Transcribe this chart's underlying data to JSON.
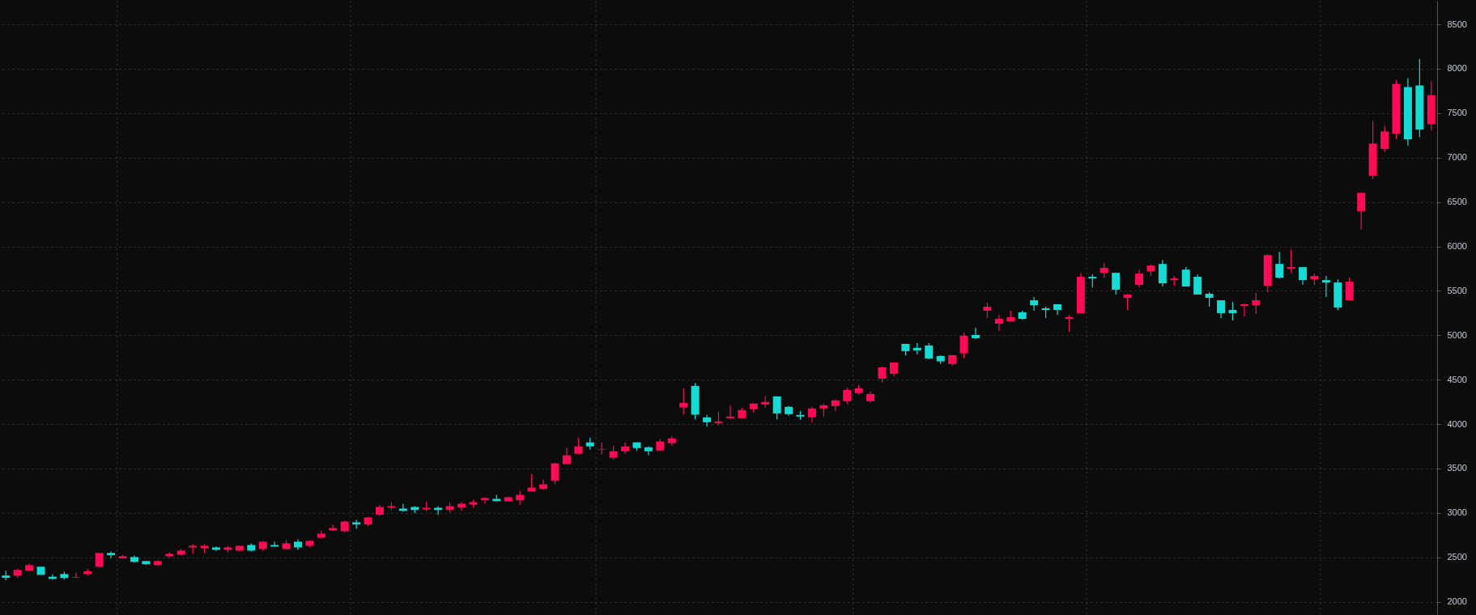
{
  "chart_data": {
    "type": "candlestick",
    "categories": [
      null,
      null,
      null,
      null,
      null,
      null,
      null,
      null,
      null,
      null,
      null,
      null,
      null,
      null,
      null,
      null,
      null,
      null,
      null,
      null,
      null,
      null,
      null,
      null,
      null,
      null,
      null,
      null,
      null,
      null,
      null,
      null,
      null,
      null,
      null,
      null,
      null,
      null,
      null,
      null,
      null,
      null,
      null,
      null,
      null,
      null,
      null,
      null,
      null,
      null,
      null,
      null,
      null,
      null,
      null,
      null,
      null,
      null,
      null,
      null,
      null,
      null,
      null,
      null,
      null,
      null,
      null,
      null,
      null,
      null,
      null,
      null,
      null,
      null,
      null,
      null,
      null,
      null,
      null,
      null,
      null,
      null,
      null,
      null,
      null,
      null,
      null,
      null,
      null,
      null,
      null,
      null,
      null,
      null,
      null,
      null,
      null,
      null,
      null,
      null,
      null,
      null,
      null,
      null,
      null,
      null,
      null,
      null,
      null,
      null,
      null,
      null,
      null,
      null,
      null,
      null,
      null,
      null,
      null,
      null,
      null,
      null,
      null
    ],
    "ohlc": [
      [
        2294,
        2349,
        2243,
        2270
      ],
      [
        2297,
        2373,
        2270,
        2358
      ],
      [
        2349,
        2430,
        2349,
        2412
      ],
      [
        2394,
        2394,
        2303,
        2303
      ],
      [
        2282,
        2309,
        2249,
        2258
      ],
      [
        2312,
        2339,
        2249,
        2267
      ],
      [
        2270,
        2330,
        2270,
        2276
      ],
      [
        2312,
        2367,
        2294,
        2343
      ],
      [
        2394,
        2549,
        2394,
        2549
      ],
      [
        2549,
        2567,
        2488,
        2524
      ],
      [
        2488,
        2527,
        2488,
        2512
      ],
      [
        2503,
        2521,
        2440,
        2449
      ],
      [
        2458,
        2458,
        2415,
        2424
      ],
      [
        2412,
        2467,
        2412,
        2458
      ],
      [
        2512,
        2558,
        2503,
        2539
      ],
      [
        2530,
        2594,
        2521,
        2576
      ],
      [
        2612,
        2649,
        2539,
        2630
      ],
      [
        2603,
        2649,
        2548,
        2630
      ],
      [
        2612,
        2621,
        2576,
        2585
      ],
      [
        2585,
        2630,
        2558,
        2612
      ],
      [
        2576,
        2630,
        2567,
        2630
      ],
      [
        2639,
        2658,
        2567,
        2576
      ],
      [
        2594,
        2685,
        2576,
        2676
      ],
      [
        2639,
        2676,
        2621,
        2621
      ],
      [
        2594,
        2694,
        2585,
        2658
      ],
      [
        2676,
        2703,
        2585,
        2612
      ],
      [
        2630,
        2685,
        2612,
        2685
      ],
      [
        2721,
        2803,
        2712,
        2767
      ],
      [
        2803,
        2867,
        2803,
        2830
      ],
      [
        2794,
        2912,
        2785,
        2903
      ],
      [
        2894,
        2921,
        2824,
        2870
      ],
      [
        2870,
        2958,
        2852,
        2949
      ],
      [
        2979,
        3094,
        2970,
        3067
      ],
      [
        3061,
        3121,
        3033,
        3076
      ],
      [
        3049,
        3103,
        3012,
        3024
      ],
      [
        3067,
        3076,
        2997,
        3033
      ],
      [
        3042,
        3130,
        3021,
        3058
      ],
      [
        3058,
        3076,
        2979,
        3033
      ],
      [
        3033,
        3121,
        3006,
        3076
      ],
      [
        3061,
        3121,
        3024,
        3103
      ],
      [
        3094,
        3149,
        3061,
        3121
      ],
      [
        3143,
        3176,
        3106,
        3167
      ],
      [
        3158,
        3203,
        3133,
        3133
      ],
      [
        3130,
        3185,
        3130,
        3176
      ],
      [
        3143,
        3249,
        3088,
        3203
      ],
      [
        3243,
        3440,
        3243,
        3285
      ],
      [
        3270,
        3376,
        3261,
        3321
      ],
      [
        3361,
        3567,
        3324,
        3558
      ],
      [
        3549,
        3730,
        3549,
        3649
      ],
      [
        3667,
        3849,
        3658,
        3749
      ],
      [
        3794,
        3849,
        3712,
        3749
      ],
      [
        3712,
        3794,
        3658,
        3718
      ],
      [
        3621,
        3758,
        3603,
        3694
      ],
      [
        3694,
        3794,
        3667,
        3749
      ],
      [
        3794,
        3794,
        3703,
        3730
      ],
      [
        3739,
        3749,
        3649,
        3694
      ],
      [
        3703,
        3830,
        3703,
        3803
      ],
      [
        3785,
        3867,
        3758,
        3839
      ],
      [
        4188,
        4403,
        4106,
        4239
      ],
      [
        4430,
        4464,
        4052,
        4106
      ],
      [
        4076,
        4103,
        3970,
        4021
      ],
      [
        4012,
        4139,
        3988,
        4030
      ],
      [
        4067,
        4212,
        4061,
        4085
      ],
      [
        4067,
        4182,
        4067,
        4158
      ],
      [
        4167,
        4239,
        4130,
        4230
      ],
      [
        4221,
        4312,
        4185,
        4249
      ],
      [
        4312,
        4312,
        4052,
        4121
      ],
      [
        4194,
        4203,
        4094,
        4112
      ],
      [
        4103,
        4149,
        4049,
        4085
      ],
      [
        4076,
        4194,
        4015,
        4176
      ],
      [
        4176,
        4230,
        4085,
        4212
      ],
      [
        4203,
        4276,
        4149,
        4267
      ],
      [
        4258,
        4412,
        4230,
        4385
      ],
      [
        4349,
        4439,
        4330,
        4403
      ],
      [
        4258,
        4367,
        4239,
        4339
      ],
      [
        4512,
        4648,
        4467,
        4639
      ],
      [
        4567,
        4694,
        4539,
        4694
      ],
      [
        4903,
        4903,
        4776,
        4821
      ],
      [
        4858,
        4912,
        4785,
        4830
      ],
      [
        4885,
        4912,
        4730,
        4739
      ],
      [
        4767,
        4776,
        4676,
        4706
      ],
      [
        4676,
        4776,
        4660,
        4776
      ],
      [
        4797,
        5030,
        4742,
        4994
      ],
      [
        5003,
        5085,
        4958,
        4967
      ],
      [
        5276,
        5367,
        5194,
        5321
      ],
      [
        5130,
        5230,
        5049,
        5185
      ],
      [
        5158,
        5276,
        5149,
        5203
      ],
      [
        5258,
        5276,
        5176,
        5185
      ],
      [
        5394,
        5430,
        5276,
        5339
      ],
      [
        5303,
        5321,
        5194,
        5285
      ],
      [
        5349,
        5349,
        5230,
        5285
      ],
      [
        5185,
        5230,
        5039,
        5203
      ],
      [
        5249,
        5703,
        5249,
        5658
      ],
      [
        5658,
        5685,
        5539,
        5639
      ],
      [
        5703,
        5812,
        5649,
        5758
      ],
      [
        5703,
        5703,
        5458,
        5512
      ],
      [
        5421,
        5467,
        5285,
        5458
      ],
      [
        5567,
        5739,
        5539,
        5694
      ],
      [
        5721,
        5794,
        5667,
        5785
      ],
      [
        5803,
        5848,
        5549,
        5585
      ],
      [
        5621,
        5667,
        5558,
        5639
      ],
      [
        5739,
        5767,
        5549,
        5549
      ],
      [
        5658,
        5685,
        5458,
        5458
      ],
      [
        5467,
        5485,
        5321,
        5421
      ],
      [
        5394,
        5394,
        5194,
        5249
      ],
      [
        5285,
        5376,
        5167,
        5249
      ],
      [
        5330,
        5358,
        5212,
        5349
      ],
      [
        5339,
        5476,
        5239,
        5394
      ],
      [
        5558,
        5912,
        5485,
        5903
      ],
      [
        5803,
        5939,
        5639,
        5649
      ],
      [
        5749,
        5967,
        5703,
        5767
      ],
      [
        5767,
        5767,
        5567,
        5621
      ],
      [
        5630,
        5694,
        5567,
        5667
      ],
      [
        5621,
        5667,
        5430,
        5594
      ],
      [
        5594,
        5630,
        5285,
        5312
      ],
      [
        5394,
        5649,
        5394,
        5603
      ],
      [
        6397,
        6603,
        6191,
        6603
      ],
      [
        6797,
        7412,
        6761,
        7158
      ],
      [
        7097,
        7358,
        7061,
        7294
      ],
      [
        7270,
        7876,
        7206,
        7830
      ],
      [
        7794,
        7894,
        7133,
        7206
      ],
      [
        7812,
        8112,
        7233,
        7315
      ],
      [
        7376,
        7858,
        7303,
        7703
      ]
    ],
    "colors": [
      "#14dcd4",
      "#ff0a54",
      "#ff0a54",
      "#14dcd4",
      "#14dcd4",
      "#14dcd4",
      "#ff0a54",
      "#ff0a54",
      "#ff0a54",
      "#14dcd4",
      "#ff0a54",
      "#14dcd4",
      "#14dcd4",
      "#ff0a54",
      "#ff0a54",
      "#ff0a54",
      "#ff0a54",
      "#ff0a54",
      "#14dcd4",
      "#ff0a54",
      "#ff0a54",
      "#14dcd4",
      "#ff0a54",
      "#14dcd4",
      "#ff0a54",
      "#14dcd4",
      "#ff0a54",
      "#ff0a54",
      "#ff0a54",
      "#ff0a54",
      "#14dcd4",
      "#ff0a54",
      "#ff0a54",
      "#ff0a54",
      "#14dcd4",
      "#14dcd4",
      "#ff0a54",
      "#14dcd4",
      "#ff0a54",
      "#ff0a54",
      "#ff0a54",
      "#ff0a54",
      "#14dcd4",
      "#ff0a54",
      "#ff0a54",
      "#ff0a54",
      "#ff0a54",
      "#ff0a54",
      "#ff0a54",
      "#ff0a54",
      "#14dcd4",
      "#ff0a54",
      "#ff0a54",
      "#ff0a54",
      "#14dcd4",
      "#14dcd4",
      "#ff0a54",
      "#ff0a54",
      "#ff0a54",
      "#14dcd4",
      "#14dcd4",
      "#ff0a54",
      "#ff0a54",
      "#ff0a54",
      "#ff0a54",
      "#ff0a54",
      "#14dcd4",
      "#14dcd4",
      "#14dcd4",
      "#ff0a54",
      "#ff0a54",
      "#ff0a54",
      "#ff0a54",
      "#ff0a54",
      "#ff0a54",
      "#ff0a54",
      "#ff0a54",
      "#14dcd4",
      "#14dcd4",
      "#14dcd4",
      "#14dcd4",
      "#ff0a54",
      "#ff0a54",
      "#14dcd4",
      "#ff0a54",
      "#ff0a54",
      "#ff0a54",
      "#14dcd4",
      "#14dcd4",
      "#14dcd4",
      "#14dcd4",
      "#ff0a54",
      "#ff0a54",
      "#14dcd4",
      "#ff0a54",
      "#14dcd4",
      "#ff0a54",
      "#ff0a54",
      "#ff0a54",
      "#14dcd4",
      "#ff0a54",
      "#14dcd4",
      "#14dcd4",
      "#14dcd4",
      "#14dcd4",
      "#14dcd4",
      "#ff0a54",
      "#ff0a54",
      "#ff0a54",
      "#14dcd4",
      "#ff0a54",
      "#14dcd4",
      "#ff0a54",
      "#14dcd4",
      "#14dcd4",
      "#ff0a54",
      "#ff0a54",
      "#ff0a54",
      "#ff0a54",
      "#ff0a54",
      "#14dcd4",
      "#14dcd4",
      "#ff0a54"
    ],
    "ylim": [
      1860,
      8765
    ],
    "yticks": [
      2000,
      2500,
      3000,
      3500,
      4000,
      4500,
      5000,
      5500,
      6000,
      6500,
      7000,
      7500,
      8000,
      8500
    ],
    "grid": true,
    "tick_labels": "y"
  }
}
